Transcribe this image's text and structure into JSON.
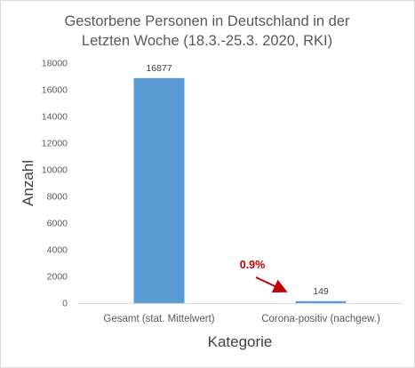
{
  "chart_data": {
    "type": "bar",
    "title_lines": [
      "Gestorbene Personen in Deutschland in der",
      "Letzten Woche (18.3.-25.3. 2020, RKI)"
    ],
    "xlabel": "Kategorie",
    "ylabel": "Anzahl",
    "categories": [
      "Gesamt (stat. Mittelwert)",
      "Corona-positiv (nachgew.)"
    ],
    "values": [
      16877,
      149
    ],
    "data_labels": [
      "16877",
      "149"
    ],
    "ylim": [
      0,
      18000
    ],
    "yticks": [
      0,
      2000,
      4000,
      6000,
      8000,
      10000,
      12000,
      14000,
      16000,
      18000
    ],
    "grid": false,
    "legend": "none",
    "bar_color": "#5b9bd5",
    "annotation": {
      "text": "0.9%",
      "color": "#c00000"
    }
  }
}
